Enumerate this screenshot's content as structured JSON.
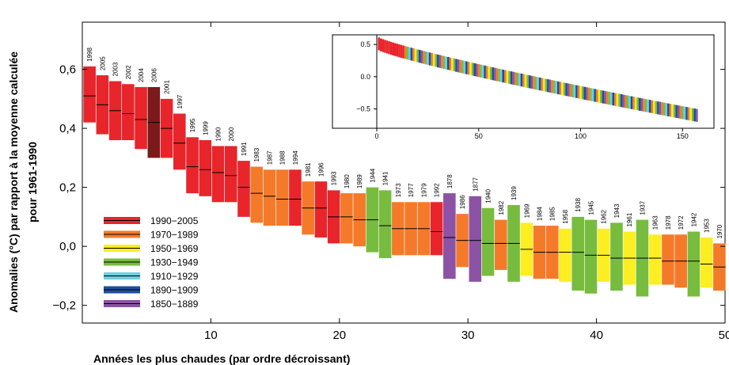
{
  "chart_data": [
    {
      "type": "bar",
      "subtype": "floating-range-with-median",
      "xlabel": "Années les plus chaudes (par ordre décroissant)",
      "ylabel_line1": "Anomalies (°C) par rapport à la moyenne calculée",
      "ylabel_line2": "pour 1961-1990",
      "xlim": [
        0,
        50
      ],
      "ylim": [
        -0.26,
        0.76
      ],
      "x_ticks": [
        10,
        20,
        30,
        40,
        50
      ],
      "y_ticks": [
        -0.2,
        0.0,
        0.2,
        0.4,
        0.6
      ],
      "y_tick_labels": [
        "−0,2",
        "0,0",
        "0,2",
        "0,4",
        "0,6"
      ],
      "grid": false,
      "legend_position": "bottom-left",
      "legend": [
        {
          "label": "1990−2005",
          "color": "#e8252b"
        },
        {
          "label": "1970−1989",
          "color": "#f47a2a"
        },
        {
          "label": "1950−1969",
          "color": "#fcee21"
        },
        {
          "label": "1930−1949",
          "color": "#77bc3f"
        },
        {
          "label": "1910−1929",
          "color": "#6ccfe0"
        },
        {
          "label": "1890−1909",
          "color": "#1f4e9e"
        },
        {
          "label": "1850−1889",
          "color": "#8c52a3"
        }
      ],
      "bars": [
        {
          "rank": 1,
          "year": "1998",
          "median": 0.51,
          "low": 0.42,
          "high": 0.61,
          "color": "#e8252b"
        },
        {
          "rank": 2,
          "year": "2005",
          "median": 0.48,
          "low": 0.38,
          "high": 0.58,
          "color": "#e8252b"
        },
        {
          "rank": 3,
          "year": "2003",
          "median": 0.46,
          "low": 0.36,
          "high": 0.56,
          "color": "#e8252b"
        },
        {
          "rank": 4,
          "year": "2002",
          "median": 0.45,
          "low": 0.36,
          "high": 0.55,
          "color": "#e8252b"
        },
        {
          "rank": 5,
          "year": "2004",
          "median": 0.43,
          "low": 0.33,
          "high": 0.54,
          "color": "#e8252b"
        },
        {
          "rank": 6,
          "year": "2006",
          "median": 0.42,
          "low": 0.3,
          "high": 0.54,
          "color": "#7a1a1a"
        },
        {
          "rank": 7,
          "year": "2001",
          "median": 0.4,
          "low": 0.3,
          "high": 0.5,
          "color": "#e8252b"
        },
        {
          "rank": 8,
          "year": "1997",
          "median": 0.35,
          "low": 0.26,
          "high": 0.45,
          "color": "#e8252b"
        },
        {
          "rank": 9,
          "year": "1995",
          "median": 0.27,
          "low": 0.18,
          "high": 0.37,
          "color": "#e8252b"
        },
        {
          "rank": 10,
          "year": "1999",
          "median": 0.26,
          "low": 0.17,
          "high": 0.36,
          "color": "#e8252b"
        },
        {
          "rank": 11,
          "year": "1990",
          "median": 0.25,
          "low": 0.15,
          "high": 0.34,
          "color": "#e8252b"
        },
        {
          "rank": 12,
          "year": "2000",
          "median": 0.24,
          "low": 0.15,
          "high": 0.34,
          "color": "#e8252b"
        },
        {
          "rank": 13,
          "year": "1991",
          "median": 0.2,
          "low": 0.1,
          "high": 0.29,
          "color": "#e8252b"
        },
        {
          "rank": 14,
          "year": "1983",
          "median": 0.18,
          "low": 0.08,
          "high": 0.27,
          "color": "#f47a2a"
        },
        {
          "rank": 15,
          "year": "1987",
          "median": 0.17,
          "low": 0.07,
          "high": 0.26,
          "color": "#f47a2a"
        },
        {
          "rank": 16,
          "year": "1988",
          "median": 0.16,
          "low": 0.07,
          "high": 0.26,
          "color": "#f47a2a"
        },
        {
          "rank": 17,
          "year": "1994",
          "median": 0.16,
          "low": 0.07,
          "high": 0.26,
          "color": "#e8252b"
        },
        {
          "rank": 18,
          "year": "1981",
          "median": 0.13,
          "low": 0.04,
          "high": 0.22,
          "color": "#f47a2a"
        },
        {
          "rank": 19,
          "year": "1996",
          "median": 0.13,
          "low": 0.03,
          "high": 0.22,
          "color": "#e8252b"
        },
        {
          "rank": 20,
          "year": "1993",
          "median": 0.1,
          "low": 0.01,
          "high": 0.19,
          "color": "#e8252b"
        },
        {
          "rank": 21,
          "year": "1980",
          "median": 0.1,
          "low": 0.01,
          "high": 0.18,
          "color": "#f47a2a"
        },
        {
          "rank": 22,
          "year": "1989",
          "median": 0.09,
          "low": 0.0,
          "high": 0.18,
          "color": "#f47a2a"
        },
        {
          "rank": 23,
          "year": "1944",
          "median": 0.09,
          "low": -0.02,
          "high": 0.2,
          "color": "#77bc3f"
        },
        {
          "rank": 24,
          "year": "1941",
          "median": 0.07,
          "low": -0.04,
          "high": 0.19,
          "color": "#77bc3f"
        },
        {
          "rank": 25,
          "year": "1973",
          "median": 0.06,
          "low": -0.03,
          "high": 0.15,
          "color": "#f47a2a"
        },
        {
          "rank": 26,
          "year": "1977",
          "median": 0.06,
          "low": -0.03,
          "high": 0.15,
          "color": "#f47a2a"
        },
        {
          "rank": 27,
          "year": "1979",
          "median": 0.06,
          "low": -0.03,
          "high": 0.15,
          "color": "#f47a2a"
        },
        {
          "rank": 28,
          "year": "1992",
          "median": 0.05,
          "low": -0.03,
          "high": 0.15,
          "color": "#e8252b"
        },
        {
          "rank": 29,
          "year": "1878",
          "median": 0.03,
          "low": -0.11,
          "high": 0.18,
          "color": "#8c52a3"
        },
        {
          "rank": 30,
          "year": "1986",
          "median": 0.02,
          "low": -0.07,
          "high": 0.11,
          "color": "#f47a2a"
        },
        {
          "rank": 31,
          "year": "1877",
          "median": 0.02,
          "low": -0.12,
          "high": 0.17,
          "color": "#8c52a3"
        },
        {
          "rank": 32,
          "year": "1940",
          "median": 0.01,
          "low": -0.1,
          "high": 0.13,
          "color": "#77bc3f"
        },
        {
          "rank": 33,
          "year": "1982",
          "median": 0.01,
          "low": -0.08,
          "high": 0.09,
          "color": "#f47a2a"
        },
        {
          "rank": 34,
          "year": "1939",
          "median": 0.01,
          "low": -0.12,
          "high": 0.14,
          "color": "#77bc3f"
        },
        {
          "rank": 35,
          "year": "1969",
          "median": -0.01,
          "low": -0.1,
          "high": 0.08,
          "color": "#fcee21"
        },
        {
          "rank": 36,
          "year": "1984",
          "median": -0.02,
          "low": -0.11,
          "high": 0.07,
          "color": "#f47a2a"
        },
        {
          "rank": 37,
          "year": "1985",
          "median": -0.02,
          "low": -0.11,
          "high": 0.07,
          "color": "#f47a2a"
        },
        {
          "rank": 38,
          "year": "1958",
          "median": -0.02,
          "low": -0.12,
          "high": 0.06,
          "color": "#fcee21"
        },
        {
          "rank": 39,
          "year": "1938",
          "median": -0.02,
          "low": -0.15,
          "high": 0.1,
          "color": "#77bc3f"
        },
        {
          "rank": 40,
          "year": "1945",
          "median": -0.03,
          "low": -0.16,
          "high": 0.09,
          "color": "#77bc3f"
        },
        {
          "rank": 41,
          "year": "1962",
          "median": -0.03,
          "low": -0.12,
          "high": 0.06,
          "color": "#fcee21"
        },
        {
          "rank": 42,
          "year": "1943",
          "median": -0.04,
          "low": -0.15,
          "high": 0.08,
          "color": "#77bc3f"
        },
        {
          "rank": 43,
          "year": "1961",
          "median": -0.04,
          "low": -0.13,
          "high": 0.05,
          "color": "#fcee21"
        },
        {
          "rank": 44,
          "year": "1937",
          "median": -0.04,
          "low": -0.17,
          "high": 0.09,
          "color": "#77bc3f"
        },
        {
          "rank": 45,
          "year": "1963",
          "median": -0.04,
          "low": -0.13,
          "high": 0.04,
          "color": "#fcee21"
        },
        {
          "rank": 46,
          "year": "1978",
          "median": -0.05,
          "low": -0.13,
          "high": 0.04,
          "color": "#f47a2a"
        },
        {
          "rank": 47,
          "year": "1972",
          "median": -0.05,
          "low": -0.14,
          "high": 0.04,
          "color": "#f47a2a"
        },
        {
          "rank": 48,
          "year": "1942",
          "median": -0.05,
          "low": -0.17,
          "high": 0.05,
          "color": "#77bc3f"
        },
        {
          "rank": 49,
          "year": "1953",
          "median": -0.06,
          "low": -0.14,
          "high": 0.03,
          "color": "#fcee21"
        },
        {
          "rank": 50,
          "year": "1970",
          "median": -0.07,
          "low": -0.15,
          "high": 0.01,
          "color": "#f47a2a"
        }
      ]
    },
    {
      "type": "bar",
      "subtype": "inset-all-years-ranked",
      "xlim": [
        0,
        160
      ],
      "ylim": [
        -0.8,
        0.65
      ],
      "x_ticks": [
        0,
        50,
        100,
        150
      ],
      "y_ticks": [
        -0.5,
        0.0,
        0.5
      ],
      "y_tick_labels": [
        "−0.5",
        "0.0",
        "0.5"
      ],
      "count": 157,
      "value_at_rank_1": 0.51,
      "value_at_rank_157": -0.6,
      "bar_half_range": 0.1,
      "color_sequence_note": "colors follow legend decades by year rank"
    }
  ]
}
